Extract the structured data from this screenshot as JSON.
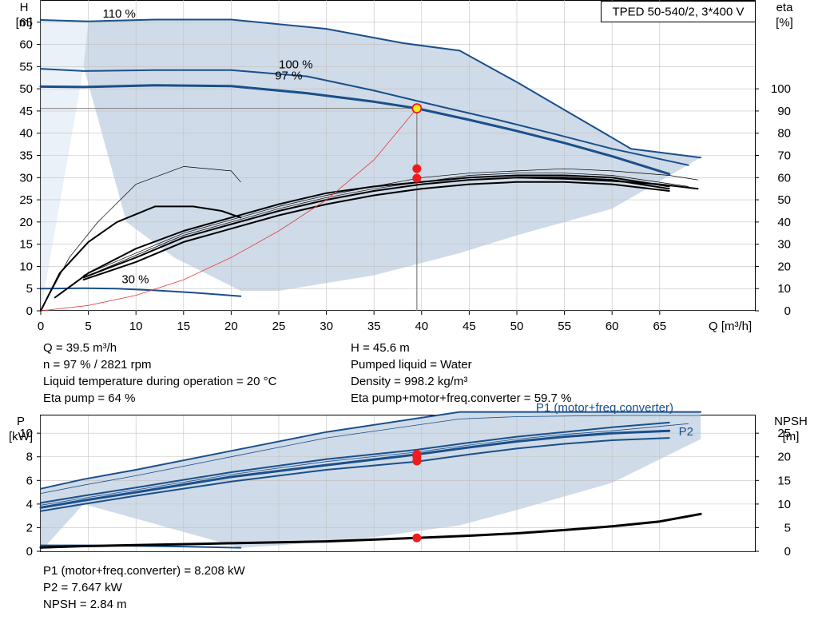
{
  "colors": {
    "curve": "#1a4f8a",
    "area": "#cfdbe8",
    "area_light": "#eaf1f8",
    "efficiency": "#000000",
    "system": "#e83a3a",
    "marker": "#ee1c1c",
    "op_point": "#f4ea17",
    "grid": "#c0c0c0",
    "axis": "#000000"
  },
  "chart_data": [
    {
      "type": "line",
      "title": "TPED 50-540/2, 3*400 V",
      "xlabel": "Q [m³/h]",
      "ylabel_left": [
        "H",
        "[m]"
      ],
      "ylabel_right": [
        "eta",
        "[%]"
      ],
      "xlim": [
        0,
        75
      ],
      "ylim_left": [
        0,
        70
      ],
      "ylim_right": [
        0,
        140
      ],
      "x_ticks": [
        "0",
        "5",
        "10",
        "15",
        "20",
        "25",
        "30",
        "35",
        "40",
        "45",
        "50",
        "55",
        "60",
        "65"
      ],
      "y_ticks_left": [
        "0",
        "5",
        "10",
        "15",
        "20",
        "25",
        "30",
        "35",
        "40",
        "45",
        "50",
        "55",
        "60",
        "65"
      ],
      "y_ticks_right": [
        "0",
        "10",
        "20",
        "30",
        "40",
        "50",
        "60",
        "70",
        "80",
        "90",
        "100"
      ],
      "grid": true,
      "speed_labels": [
        {
          "text": "110 %",
          "x": 6.5,
          "y": 66
        },
        {
          "text": "100 %",
          "x": 25,
          "y": 54.6
        },
        {
          "text": "97 %",
          "x": 24.6,
          "y": 52.1
        },
        {
          "text": "30 %",
          "x": 8.5,
          "y": 6.2
        }
      ],
      "series": [
        {
          "name": "110 %",
          "role": "head",
          "weight": 2,
          "x": [
            0,
            5,
            12,
            20,
            30,
            38,
            44,
            50,
            56,
            62,
            69.3
          ],
          "y": [
            65.5,
            65.2,
            65.6,
            65.6,
            63.5,
            60.3,
            58.6,
            51.5,
            44.0,
            36.5,
            34.5
          ]
        },
        {
          "name": "100 %",
          "role": "head",
          "weight": 2,
          "x": [
            0,
            4.5,
            12,
            20,
            28,
            35,
            42,
            48,
            54,
            60,
            68
          ],
          "y": [
            54.5,
            54.0,
            54.2,
            54.2,
            52.8,
            49.6,
            46.0,
            43.0,
            39.8,
            36.5,
            32.8
          ]
        },
        {
          "name": "97 %",
          "role": "head",
          "weight": 3,
          "x": [
            0,
            4.5,
            12,
            20,
            28,
            35,
            39.5,
            45,
            50,
            55,
            60,
            66
          ],
          "y": [
            50.5,
            50.4,
            50.8,
            50.6,
            49.0,
            47.1,
            45.6,
            43.0,
            40.5,
            37.8,
            34.8,
            30.8
          ]
        },
        {
          "name": "30 %",
          "role": "head",
          "weight": 2,
          "x": [
            0,
            4.5,
            8,
            12,
            16,
            21
          ],
          "y": [
            5.0,
            5.1,
            5.0,
            4.6,
            4.1,
            3.3
          ]
        },
        {
          "role": "eta_thin",
          "weight": 0.7,
          "x": [
            0,
            3,
            6,
            10,
            15,
            20,
            21
          ],
          "y": [
            0,
            24,
            40,
            57,
            65,
            63,
            58
          ]
        },
        {
          "role": "eta",
          "weight": 2,
          "x": [
            0,
            2,
            5,
            8,
            12,
            16,
            19,
            21
          ],
          "y": [
            0,
            17,
            31,
            40,
            47,
            47,
            45,
            42
          ]
        },
        {
          "role": "eta",
          "weight": 2,
          "x": [
            1.5,
            5,
            10,
            15,
            20,
            25,
            30,
            35,
            40,
            45,
            50,
            55,
            60,
            66
          ],
          "y": [
            6,
            17,
            28,
            36,
            42,
            48,
            53,
            56,
            58,
            60,
            61,
            61,
            60,
            56
          ]
        },
        {
          "role": "eta",
          "weight": 2,
          "x": [
            4.5,
            10,
            15,
            20,
            25,
            30,
            35,
            40,
            45,
            50,
            55,
            60,
            66
          ],
          "y": [
            15,
            24,
            33,
            39,
            45,
            50,
            54,
            57,
            59,
            60,
            60,
            59,
            55
          ]
        },
        {
          "role": "eta",
          "weight": 2,
          "x": [
            4.5,
            10,
            15,
            20,
            25,
            30,
            35,
            40,
            45,
            50,
            55,
            60,
            66
          ],
          "y": [
            14,
            22,
            31,
            37,
            43,
            48,
            52,
            55,
            57,
            58,
            58,
            57,
            54
          ]
        },
        {
          "role": "eta_thin",
          "weight": 0.7,
          "x": [
            4.5,
            10,
            15,
            20,
            25,
            30,
            35,
            40,
            45,
            50,
            55,
            60,
            66,
            69
          ],
          "y": [
            16,
            26,
            35,
            41,
            47,
            52,
            56,
            60,
            62,
            63,
            64,
            63,
            61,
            59
          ]
        },
        {
          "role": "eta_thin",
          "weight": 0.7,
          "x": [
            4.5,
            10,
            15,
            20,
            25,
            30,
            35,
            40,
            45,
            50,
            55,
            60,
            68
          ],
          "y": [
            15,
            25,
            34,
            40,
            46,
            51,
            55,
            58,
            61,
            62,
            62,
            61,
            56
          ]
        },
        {
          "role": "eta",
          "weight": 2,
          "x": [
            50,
            55,
            60,
            65,
            69
          ],
          "y": [
            60,
            59.5,
            58.5,
            57,
            55
          ]
        },
        {
          "role": "system",
          "weight": 0.8,
          "x": [
            0,
            5,
            10,
            15,
            20,
            25,
            30,
            35,
            39.5
          ],
          "y": [
            0,
            1.2,
            3.5,
            7.0,
            12,
            18,
            25,
            34,
            45.6
          ]
        }
      ],
      "lower_area_boundary": {
        "x": [
          0,
          4.5,
          9,
          14,
          21,
          25,
          35,
          44,
          50,
          60,
          69.3
        ],
        "y": [
          0,
          55,
          20,
          12,
          4.5,
          4.5,
          8,
          13,
          17,
          23,
          34.5
        ]
      },
      "operating_point": {
        "x": 39.5,
        "y": 45.6
      },
      "markers": [
        {
          "x": 39.5,
          "y_eta": 64
        },
        {
          "x": 39.5,
          "y_eta": 59.7
        }
      ],
      "readout": {
        "left": [
          "Q = 39.5 m³/h",
          "n = 97 % / 2821 rpm",
          "Liquid temperature during operation = 20 °C",
          "Eta pump = 64 %"
        ],
        "right": [
          "H = 45.6 m",
          "Pumped liquid = Water",
          "Density = 998.2 kg/m³",
          "Eta pump+motor+freq.converter = 59.7 %"
        ]
      }
    },
    {
      "type": "line",
      "ylabel_left": [
        "P",
        "[kW]"
      ],
      "ylabel_right": [
        "NPSH",
        "[m]"
      ],
      "xlim": [
        0,
        75
      ],
      "ylim_left": [
        0,
        11.5
      ],
      "ylim_right": [
        0,
        28.75
      ],
      "y_ticks_left": [
        "0",
        "2",
        "4",
        "6",
        "8",
        "10"
      ],
      "y_ticks_right": [
        "0",
        "5",
        "10",
        "15",
        "20",
        "25"
      ],
      "series_labels": [
        {
          "text": "P1 (motor+freq.converter)",
          "x": 52,
          "y": 11.85
        },
        {
          "text": "P2",
          "x": 67,
          "y": 9.8
        }
      ],
      "series": [
        {
          "name": "P1 (motor+freq.converter)",
          "role": "power",
          "weight": 2,
          "x": [
            0,
            4.5,
            10,
            20,
            30,
            44,
            50,
            60,
            69.3
          ],
          "y": [
            5.3,
            6.1,
            6.9,
            8.5,
            10.1,
            11.8,
            11.8,
            11.8,
            11.8
          ]
        },
        {
          "role": "power_thin",
          "weight": 0.8,
          "x": [
            0,
            4.5,
            10,
            20,
            30,
            44,
            50,
            60,
            69.3
          ],
          "y": [
            4.9,
            5.6,
            6.4,
            8.0,
            9.6,
            11.2,
            11.4,
            11.5,
            11.5
          ]
        },
        {
          "role": "power",
          "weight": 2,
          "x": [
            0,
            4.5,
            10,
            20,
            30,
            39.5,
            45,
            50,
            55,
            60,
            66
          ],
          "y": [
            4.1,
            4.7,
            5.4,
            6.7,
            7.8,
            8.6,
            9.2,
            9.7,
            10.1,
            10.5,
            10.9
          ]
        },
        {
          "role": "power",
          "weight": 3,
          "x": [
            0,
            4.5,
            10,
            20,
            30,
            39.5,
            45,
            50,
            55,
            60,
            66
          ],
          "y": [
            3.7,
            4.3,
            5.0,
            6.3,
            7.3,
            8.2,
            8.8,
            9.3,
            9.7,
            10.0,
            10.2
          ]
        },
        {
          "role": "power",
          "weight": 2,
          "x": [
            0,
            4.5,
            10,
            20,
            30,
            39.5,
            45,
            50,
            55,
            60,
            66
          ],
          "y": [
            3.4,
            4.0,
            4.7,
            5.9,
            6.9,
            7.6,
            8.2,
            8.7,
            9.1,
            9.4,
            9.6
          ]
        },
        {
          "role": "power_thin",
          "weight": 0.8,
          "x": [
            0,
            4.5,
            10,
            20,
            30,
            39.5,
            45,
            50,
            55,
            60,
            68
          ],
          "y": [
            3.9,
            4.5,
            5.2,
            6.5,
            7.6,
            8.4,
            9.0,
            9.5,
            9.9,
            10.2,
            10.8
          ]
        },
        {
          "role": "power",
          "weight": 2,
          "x": [
            0,
            4.5,
            10,
            15,
            21
          ],
          "y": [
            0.5,
            0.5,
            0.45,
            0.4,
            0.3
          ]
        },
        {
          "name": "NPSH",
          "role": "npsh",
          "weight": 3,
          "x": [
            0,
            4.5,
            10,
            20,
            30,
            39.5,
            45,
            50,
            55,
            60,
            65,
            69.3
          ],
          "y": [
            0.8,
            1.1,
            1.3,
            1.7,
            2.1,
            2.84,
            3.3,
            3.8,
            4.5,
            5.3,
            6.3,
            7.9
          ]
        }
      ],
      "area_upper": {
        "x": [
          0,
          4.5,
          10,
          20,
          30,
          44,
          50,
          60,
          69.3
        ],
        "y": [
          5.3,
          6.1,
          6.9,
          8.5,
          10.1,
          11.8,
          11.8,
          11.8,
          11.8
        ]
      },
      "area_lower": {
        "x": [
          0,
          4.5,
          21,
          25,
          35,
          44,
          50,
          60,
          69.3
        ],
        "y": [
          0,
          4.0,
          0.3,
          0.5,
          1.2,
          2.2,
          3.5,
          5.8,
          9.5
        ]
      },
      "markers": [
        {
          "x": 39.5,
          "y": 8.208
        },
        {
          "x": 39.5,
          "y": 7.647
        },
        {
          "x": 39.5,
          "y": 8.0
        },
        {
          "x": 39.5,
          "y_npsh": 2.84
        }
      ],
      "readout": [
        "P1 (motor+freq.converter) = 8.208 kW",
        "P2 = 7.647 kW",
        "NPSH = 2.84 m"
      ]
    }
  ]
}
